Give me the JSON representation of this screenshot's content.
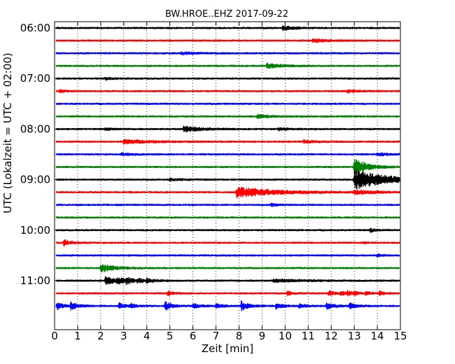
{
  "chart_data": {
    "type": "line",
    "title": "BW.HROE..EHZ 2017-09-22",
    "xlabel": "Zeit  [min]",
    "ylabel": "UTC (Lokalzeit = UTC + 02:00)",
    "xlim": [
      0,
      15
    ],
    "x_ticks": [
      0,
      1,
      2,
      3,
      4,
      5,
      6,
      7,
      8,
      9,
      10,
      11,
      12,
      13,
      14,
      15
    ],
    "y_tick_labels": [
      "06:00",
      "07:00",
      "08:00",
      "09:00",
      "10:00",
      "11:00"
    ],
    "trace_interval_min": 15,
    "start_time": "06:00",
    "grid": "vertical dotted",
    "series_colors": [
      "#000000",
      "#ff0000",
      "#0000ff",
      "#008000"
    ],
    "traces": [
      {
        "events": [
          {
            "t": 9.9,
            "a": 0.45,
            "d": 0.5
          }
        ]
      },
      {
        "events": [
          {
            "t": 11.2,
            "a": 0.4,
            "d": 0.6
          }
        ]
      },
      {
        "events": [
          {
            "t": 5.5,
            "a": 0.25,
            "d": 0.6
          }
        ]
      },
      {
        "events": [
          {
            "t": 9.2,
            "a": 0.55,
            "d": 0.6
          }
        ]
      },
      {
        "events": [
          {
            "t": 2.2,
            "a": 0.25,
            "d": 0.4
          }
        ]
      },
      {
        "events": [
          {
            "t": 0.2,
            "a": 0.3,
            "d": 0.3
          },
          {
            "t": 12.7,
            "a": 0.3,
            "d": 0.4
          }
        ]
      },
      {
        "events": []
      },
      {
        "events": [
          {
            "t": 8.8,
            "a": 0.4,
            "d": 0.5
          }
        ]
      },
      {
        "events": [
          {
            "t": 2.2,
            "a": 0.25,
            "d": 0.3
          },
          {
            "t": 5.6,
            "a": 0.6,
            "d": 0.8
          },
          {
            "t": 9.7,
            "a": 0.3,
            "d": 0.4
          }
        ]
      },
      {
        "events": [
          {
            "t": 3.0,
            "a": 0.45,
            "d": 1.2
          },
          {
            "t": 10.8,
            "a": 0.35,
            "d": 0.5
          }
        ]
      },
      {
        "events": [
          {
            "t": 2.9,
            "a": 0.3,
            "d": 0.5
          },
          {
            "t": 14.0,
            "a": 0.3,
            "d": 0.5
          }
        ]
      },
      {
        "events": [
          {
            "t": 13.0,
            "a": 2.2,
            "d": 0.5
          }
        ]
      },
      {
        "events": [
          {
            "t": 5.0,
            "a": 0.25,
            "d": 0.5
          },
          {
            "t": 13.0,
            "a": 2.4,
            "d": 1.3
          }
        ]
      },
      {
        "events": [
          {
            "t": 7.9,
            "a": 1.2,
            "d": 1.6
          },
          {
            "t": 13.0,
            "a": 0.5,
            "d": 0.8
          }
        ]
      },
      {
        "events": [
          {
            "t": 9.4,
            "a": 0.25,
            "d": 0.3
          }
        ]
      },
      {
        "events": []
      },
      {
        "events": [
          {
            "t": 13.7,
            "a": 0.4,
            "d": 0.2
          }
        ]
      },
      {
        "events": [
          {
            "t": 0.4,
            "a": 0.7,
            "d": 0.3
          },
          {
            "t": 13.4,
            "a": 0.2,
            "d": 0.2
          }
        ]
      },
      {
        "events": [
          {
            "t": 14.0,
            "a": 0.3,
            "d": 0.2
          }
        ]
      },
      {
        "events": [
          {
            "t": 2.0,
            "a": 0.9,
            "d": 0.6
          }
        ]
      },
      {
        "events": [
          {
            "t": 2.2,
            "a": 0.9,
            "d": 0.5
          },
          {
            "t": 2.7,
            "a": 0.5,
            "d": 0.4
          },
          {
            "t": 3.1,
            "a": 0.5,
            "d": 0.3
          },
          {
            "t": 3.6,
            "a": 0.4,
            "d": 0.3
          },
          {
            "t": 4.0,
            "a": 0.35,
            "d": 0.3
          },
          {
            "t": 9.5,
            "a": 0.3,
            "d": 1.5
          }
        ]
      },
      {
        "events": [
          {
            "t": 4.9,
            "a": 0.5,
            "d": 0.2
          },
          {
            "t": 10.1,
            "a": 0.5,
            "d": 0.2
          },
          {
            "t": 11.9,
            "a": 0.7,
            "d": 0.2
          },
          {
            "t": 12.4,
            "a": 0.45,
            "d": 0.2
          },
          {
            "t": 12.7,
            "a": 0.45,
            "d": 0.2
          },
          {
            "t": 13.0,
            "a": 0.4,
            "d": 0.2
          },
          {
            "t": 13.5,
            "a": 0.4,
            "d": 0.2
          },
          {
            "t": 14.1,
            "a": 0.5,
            "d": 0.2
          }
        ]
      },
      {
        "events": [
          {
            "t": 0.1,
            "a": 0.9,
            "d": 0.3
          },
          {
            "t": 0.7,
            "a": 0.8,
            "d": 0.3
          },
          {
            "t": 2.8,
            "a": 0.7,
            "d": 0.3
          },
          {
            "t": 3.3,
            "a": 0.45,
            "d": 0.2
          },
          {
            "t": 4.8,
            "a": 1.0,
            "d": 0.3
          },
          {
            "t": 6.0,
            "a": 0.5,
            "d": 0.3
          },
          {
            "t": 7.0,
            "a": 0.5,
            "d": 0.3
          },
          {
            "t": 8.1,
            "a": 1.1,
            "d": 0.3
          },
          {
            "t": 9.6,
            "a": 0.6,
            "d": 0.3
          },
          {
            "t": 10.6,
            "a": 0.5,
            "d": 0.3
          },
          {
            "t": 11.8,
            "a": 0.8,
            "d": 0.3
          },
          {
            "t": 12.8,
            "a": 0.6,
            "d": 0.3
          }
        ]
      }
    ]
  }
}
